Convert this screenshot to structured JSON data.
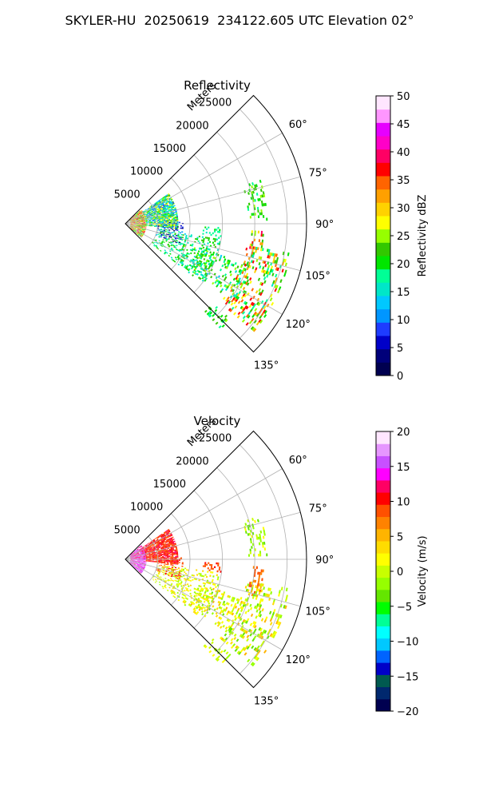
{
  "suptitle": "SKYLER-HU  20250619  234122.605 UTC Elevation 02°",
  "chart_data": [
    {
      "type": "heatmap",
      "title": "Reflectivity",
      "projection": "polar-sector",
      "theta_range_deg": [
        45,
        135
      ],
      "r_range_m": [
        0,
        28000
      ],
      "r_ticks": [
        "5000",
        "10000",
        "15000",
        "20000",
        "25000"
      ],
      "r_label": "Meters",
      "theta_ticks": [
        "60°",
        "75°",
        "90°",
        "105°",
        "120°",
        "135°"
      ],
      "grid": true,
      "colorbar": {
        "label": "Reflectivity dBZ",
        "range": [
          0,
          50
        ],
        "ticks": [
          "0",
          "5",
          "10",
          "15",
          "20",
          "25",
          "30",
          "35",
          "40",
          "45",
          "50"
        ],
        "colors": [
          "#000050",
          "#00007a",
          "#0000c8",
          "#1e3cff",
          "#0096ff",
          "#00c8ff",
          "#00e6c8",
          "#00ff96",
          "#00e600",
          "#32c800",
          "#96ff00",
          "#ffff00",
          "#ffd200",
          "#ffa000",
          "#ff6400",
          "#ff0000",
          "#ff0064",
          "#ff00c8",
          "#e600ff",
          "#ff96ff",
          "#ffe6ff"
        ]
      },
      "echo_regions": [
        {
          "az": [
            48,
            132
          ],
          "r": [
            800,
            3200
          ],
          "dbz": [
            18,
            42
          ]
        },
        {
          "az": [
            55,
            95
          ],
          "r": [
            3200,
            8000
          ],
          "dbz": [
            8,
            28
          ]
        },
        {
          "az": [
            88,
            110
          ],
          "r": [
            5000,
            9000
          ],
          "dbz": [
            0,
            12
          ]
        },
        {
          "az": [
            98,
            128
          ],
          "r": [
            5000,
            15000
          ],
          "dbz": [
            14,
            24
          ]
        },
        {
          "az": [
            108,
            125
          ],
          "r": [
            12000,
            20000
          ],
          "dbz": [
            14,
            26
          ]
        },
        {
          "az": [
            92,
            97
          ],
          "r": [
            12000,
            15000
          ],
          "dbz": [
            15,
            20
          ]
        },
        {
          "az": [
            72,
            88
          ],
          "r": [
            19000,
            22000
          ],
          "dbz": [
            18,
            26
          ]
        },
        {
          "az": [
            93,
            106
          ],
          "r": [
            19500,
            21500
          ],
          "dbz": [
            20,
            40
          ]
        },
        {
          "az": [
            100,
            130
          ],
          "r": [
            19000,
            26000
          ],
          "dbz": [
            16,
            38
          ]
        },
        {
          "az": [
            132,
            137
          ],
          "r": [
            18000,
            22000
          ],
          "dbz": [
            18,
            24
          ]
        }
      ]
    },
    {
      "type": "heatmap",
      "title": "Velocity",
      "projection": "polar-sector",
      "theta_range_deg": [
        45,
        135
      ],
      "r_range_m": [
        0,
        28000
      ],
      "r_ticks": [
        "5000",
        "10000",
        "15000",
        "20000",
        "25000"
      ],
      "r_label": "Meters",
      "theta_ticks": [
        "60°",
        "75°",
        "90°",
        "105°",
        "120°",
        "135°"
      ],
      "grid": true,
      "colorbar": {
        "label": "Velocity (m/s)",
        "range": [
          -20,
          20
        ],
        "ticks": [
          "−20",
          "−15",
          "−10",
          "−5",
          "0",
          "5",
          "10",
          "15",
          "20"
        ],
        "colors": [
          "#000050",
          "#00286e",
          "#005a50",
          "#0000c8",
          "#0064ff",
          "#00c8ff",
          "#00ffff",
          "#00ff96",
          "#00ff00",
          "#64e600",
          "#96ff00",
          "#c8ff00",
          "#ffff00",
          "#ffdc00",
          "#ffb400",
          "#ff8200",
          "#ff5000",
          "#ff0000",
          "#ff0064",
          "#ff00ff",
          "#c850ff",
          "#e696ff",
          "#ffe6ff"
        ]
      },
      "echo_regions": [
        {
          "az": [
            48,
            90
          ],
          "r": [
            800,
            3200
          ],
          "vel": [
            11,
            17
          ]
        },
        {
          "az": [
            90,
            132
          ],
          "r": [
            800,
            3200
          ],
          "vel": [
            12,
            18
          ]
        },
        {
          "az": [
            55,
            95
          ],
          "r": [
            3200,
            8000
          ],
          "vel": [
            8,
            12
          ]
        },
        {
          "az": [
            88,
            110
          ],
          "r": [
            5000,
            9000
          ],
          "vel": [
            8,
            10
          ]
        },
        {
          "az": [
            98,
            128
          ],
          "r": [
            5000,
            15000
          ],
          "vel": [
            -2,
            4
          ]
        },
        {
          "az": [
            108,
            125
          ],
          "r": [
            12000,
            20000
          ],
          "vel": [
            -3,
            5
          ]
        },
        {
          "az": [
            92,
            97
          ],
          "r": [
            12000,
            15000
          ],
          "vel": [
            8,
            10
          ]
        },
        {
          "az": [
            72,
            88
          ],
          "r": [
            19000,
            22000
          ],
          "vel": [
            -4,
            2
          ]
        },
        {
          "az": [
            93,
            106
          ],
          "r": [
            19500,
            21500
          ],
          "vel": [
            6,
            9
          ]
        },
        {
          "az": [
            100,
            130
          ],
          "r": [
            19000,
            26000
          ],
          "vel": [
            -4,
            6
          ]
        },
        {
          "az": [
            132,
            137
          ],
          "r": [
            18000,
            22000
          ],
          "vel": [
            -2,
            2
          ]
        }
      ]
    }
  ]
}
